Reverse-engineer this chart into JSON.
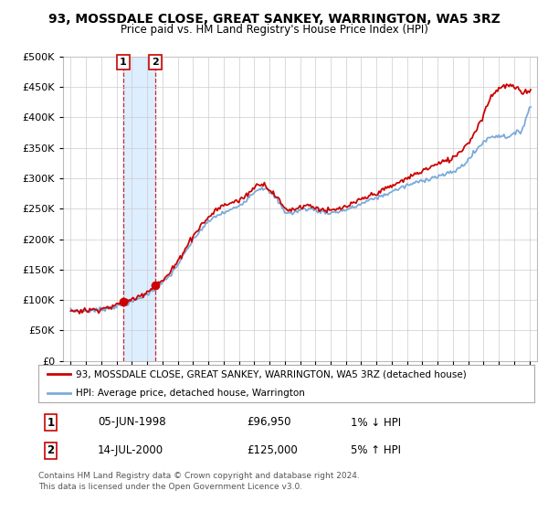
{
  "title": "93, MOSSDALE CLOSE, GREAT SANKEY, WARRINGTON, WA5 3RZ",
  "subtitle": "Price paid vs. HM Land Registry's House Price Index (HPI)",
  "legend_line1": "93, MOSSDALE CLOSE, GREAT SANKEY, WARRINGTON, WA5 3RZ (detached house)",
  "legend_line2": "HPI: Average price, detached house, Warrington",
  "footer": "Contains HM Land Registry data © Crown copyright and database right 2024.\nThis data is licensed under the Open Government Licence v3.0.",
  "transactions": [
    {
      "num": 1,
      "date": "05-JUN-1998",
      "price": "£96,950",
      "hpi": "1% ↓ HPI"
    },
    {
      "num": 2,
      "date": "14-JUL-2000",
      "price": "£125,000",
      "hpi": "5% ↑ HPI"
    }
  ],
  "transaction_dates": [
    1998.44,
    2000.54
  ],
  "transaction_prices": [
    96950,
    125000
  ],
  "ylim": [
    0,
    500000
  ],
  "yticks": [
    0,
    50000,
    100000,
    150000,
    200000,
    250000,
    300000,
    350000,
    400000,
    450000,
    500000
  ],
  "xlim_start": 1994.5,
  "xlim_end": 2025.5,
  "red_color": "#cc0000",
  "blue_color": "#7aabdb",
  "shade_color": "#ddeeff",
  "grid_color": "#cccccc"
}
